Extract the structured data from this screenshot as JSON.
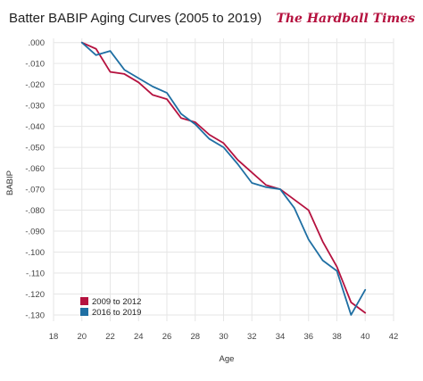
{
  "header": {
    "brand": "The Hardball Times"
  },
  "colors": {
    "series_2009_2012": "#b5123f",
    "series_2016_2019": "#1f6fa3",
    "brand": "#b5123f",
    "grid": "#e6e6e6"
  },
  "chart_data": {
    "type": "line",
    "title": "Batter BABIP Aging Curves (2005 to 2019)",
    "xlabel": "Age",
    "ylabel": "BABIP",
    "xlim": [
      18,
      42
    ],
    "ylim": [
      -0.133,
      0.002
    ],
    "x_ticks": [
      18,
      20,
      22,
      24,
      26,
      28,
      30,
      32,
      34,
      36,
      38,
      40,
      42
    ],
    "x_tick_labels": [
      "18",
      "20",
      "22",
      "24",
      "26",
      "28",
      "30",
      "32",
      "34",
      "36",
      "38",
      "40",
      "42"
    ],
    "y_ticks": [
      0,
      -0.01,
      -0.02,
      -0.03,
      -0.04,
      -0.05,
      -0.06,
      -0.07,
      -0.08,
      -0.09,
      -0.1,
      -0.11,
      -0.12,
      -0.13
    ],
    "y_tick_labels": [
      ".000",
      "-.010",
      "-.020",
      "-.030",
      "-.040",
      "-.050",
      "-.060",
      "-.070",
      "-.080",
      "-.090",
      "-.100",
      "-.110",
      "-.120",
      "-.130"
    ],
    "grid": true,
    "legend_position": "bottom-left",
    "series": [
      {
        "name": "2009 to 2012",
        "color": "#b5123f",
        "x": [
          20,
          21,
          22,
          23,
          24,
          25,
          26,
          27,
          28,
          29,
          30,
          31,
          32,
          33,
          34,
          35,
          36,
          37,
          38,
          39,
          40
        ],
        "values": [
          0,
          -0.003,
          -0.014,
          -0.015,
          -0.019,
          -0.025,
          -0.027,
          -0.036,
          -0.038,
          -0.044,
          -0.048,
          -0.056,
          -0.062,
          -0.068,
          -0.07,
          -0.075,
          -0.08,
          -0.095,
          -0.107,
          -0.124,
          -0.129
        ]
      },
      {
        "name": "2016 to 2019",
        "color": "#1f6fa3",
        "x": [
          20,
          21,
          22,
          23,
          24,
          25,
          26,
          27,
          28,
          29,
          30,
          31,
          32,
          33,
          34,
          35,
          36,
          37,
          38,
          39,
          40
        ],
        "values": [
          0,
          -0.006,
          -0.004,
          -0.013,
          -0.017,
          -0.021,
          -0.024,
          -0.034,
          -0.039,
          -0.046,
          -0.05,
          -0.058,
          -0.067,
          -0.069,
          -0.07,
          -0.079,
          -0.094,
          -0.104,
          -0.109,
          -0.13,
          -0.118
        ]
      }
    ]
  }
}
